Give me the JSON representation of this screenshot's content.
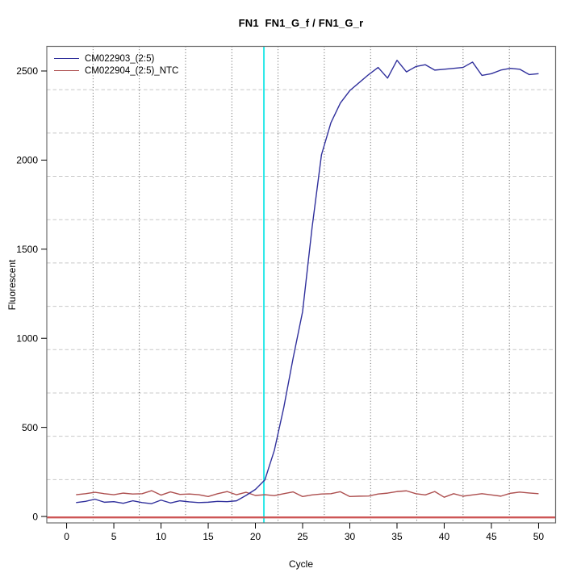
{
  "chart_data": {
    "type": "line",
    "title": "FN1  FN1_G_f / FN1_G_r",
    "xlabel": "Cycle",
    "ylabel": "Fluorescent",
    "xlim": [
      -2.1,
      51.8
    ],
    "ylim": [
      -36,
      2638
    ],
    "x_ticks": [
      0,
      5,
      10,
      15,
      20,
      25,
      30,
      35,
      40,
      45,
      50
    ],
    "y_ticks": [
      0,
      500,
      1000,
      1500,
      2000,
      2500
    ],
    "grid": {
      "on": true,
      "divisions": 11,
      "vertical_style": "dotted",
      "horizontal_style": "dashed"
    },
    "legend_position": "top-left",
    "x": [
      1,
      2,
      3,
      4,
      5,
      6,
      7,
      8,
      9,
      10,
      11,
      12,
      13,
      14,
      15,
      16,
      17,
      18,
      19,
      20,
      21,
      22,
      23,
      24,
      25,
      26,
      27,
      28,
      29,
      30,
      31,
      32,
      33,
      34,
      35,
      36,
      37,
      38,
      39,
      40,
      41,
      42,
      43,
      44,
      45,
      46,
      47,
      48,
      49,
      50
    ],
    "series": [
      {
        "name": "CM022903_(2:5)",
        "color": "#30309c",
        "values": [
          78,
          85,
          97,
          80,
          83,
          74,
          88,
          78,
          72,
          92,
          76,
          88,
          82,
          78,
          80,
          85,
          83,
          88,
          118,
          152,
          205,
          370,
          610,
          890,
          1150,
          1620,
          2030,
          2210,
          2320,
          2390,
          2435,
          2480,
          2520,
          2460,
          2560,
          2495,
          2525,
          2535,
          2505,
          2510,
          2515,
          2520,
          2550,
          2475,
          2485,
          2505,
          2515,
          2510,
          2480,
          2485
        ]
      },
      {
        "name": "CM022904_(2:5)_NTC",
        "color": "#ad4f4f",
        "values": [
          122,
          128,
          136,
          128,
          122,
          131,
          126,
          128,
          145,
          120,
          138,
          124,
          126,
          122,
          112,
          128,
          140,
          122,
          136,
          118,
          122,
          117,
          128,
          138,
          112,
          121,
          126,
          128,
          139,
          112,
          114,
          115,
          126,
          131,
          140,
          144,
          128,
          121,
          140,
          108,
          128,
          114,
          121,
          128,
          121,
          114,
          130,
          137,
          132,
          128
        ]
      }
    ],
    "ct_line": {
      "x": 20.9,
      "color": "#2ae8e8"
    },
    "threshold_line": {
      "y": -5,
      "color": "#cd5656"
    },
    "axis_color": "#6f6f6f",
    "tick_color": "#000000"
  }
}
